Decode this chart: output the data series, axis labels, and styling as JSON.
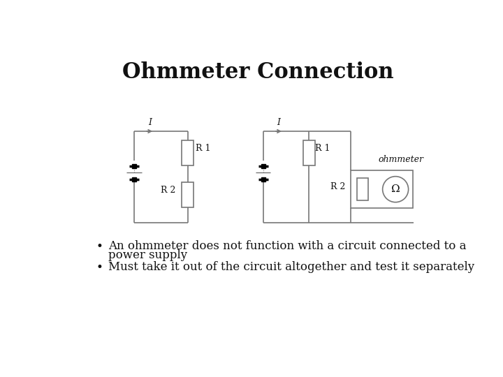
{
  "title": "Ohmmeter Connection",
  "title_fontsize": 22,
  "title_fontweight": "bold",
  "background_color": "#ffffff",
  "line_color": "#777777",
  "text_color": "#111111",
  "bullet1_line1": "An ohmmeter does not function with a circuit connected to a",
  "bullet1_line2": "power supply",
  "bullet2": "Must take it out of the circuit altogether and test it separately",
  "bullet_fontsize": 12,
  "ohmmeter_label": "ohmmeter",
  "lw": 1.2
}
